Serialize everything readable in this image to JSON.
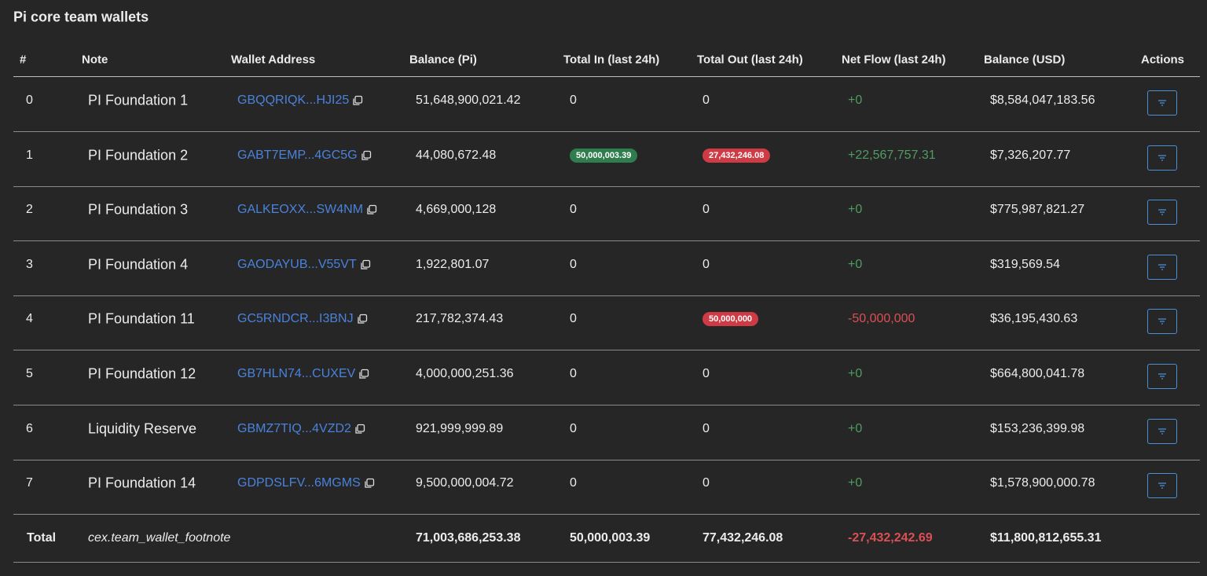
{
  "title": "Pi core team wallets",
  "table": {
    "headers": [
      "#",
      "Note",
      "Wallet Address",
      "Balance (Pi)",
      "Total In (last 24h)",
      "Total Out (last 24h)",
      "Net Flow (last 24h)",
      "Balance (USD)",
      "Actions"
    ],
    "rows": [
      {
        "index": "0",
        "note": "PI Foundation 1",
        "address": "GBQQRIQK...HJI25",
        "balance": "51,648,900,021.42",
        "total_in": "0",
        "total_out": "0",
        "net_flow": "+0",
        "balance_usd": "$8,584,047,183.56"
      },
      {
        "index": "1",
        "note": "PI Foundation 2",
        "address": "GABT7EMP...4GC5G",
        "balance": "44,080,672.48",
        "total_in": "50,000,003.39",
        "total_out": "27,432,246.08",
        "net_flow": "+22,567,757.31",
        "balance_usd": "$7,326,207.77"
      },
      {
        "index": "2",
        "note": "PI Foundation 3",
        "address": "GALKEOXX...SW4NM",
        "balance": "4,669,000,128",
        "total_in": "0",
        "total_out": "0",
        "net_flow": "+0",
        "balance_usd": "$775,987,821.27"
      },
      {
        "index": "3",
        "note": "PI Foundation 4",
        "address": "GAODAYUB...V55VT",
        "balance": "1,922,801.07",
        "total_in": "0",
        "total_out": "0",
        "net_flow": "+0",
        "balance_usd": "$319,569.54"
      },
      {
        "index": "4",
        "note": "PI Foundation 11",
        "address": "GC5RNDCR...I3BNJ",
        "balance": "217,782,374.43",
        "total_in": "0",
        "total_out": "50,000,000",
        "net_flow": "-50,000,000",
        "balance_usd": "$36,195,430.63"
      },
      {
        "index": "5",
        "note": "PI Foundation 12",
        "address": "GB7HLN74...CUXEV",
        "balance": "4,000,000,251.36",
        "total_in": "0",
        "total_out": "0",
        "net_flow": "+0",
        "balance_usd": "$664,800,041.78"
      },
      {
        "index": "6",
        "note": "Liquidity Reserve",
        "address": "GBMZ7TIQ...4VZD2",
        "balance": "921,999,999.89",
        "total_in": "0",
        "total_out": "0",
        "net_flow": "+0",
        "balance_usd": "$153,236,399.98"
      },
      {
        "index": "7",
        "note": "PI Foundation 14",
        "address": "GDPDSLFV...6MGMS",
        "balance": "9,500,000,004.72",
        "total_in": "0",
        "total_out": "0",
        "net_flow": "+0",
        "balance_usd": "$1,578,900,000.78"
      }
    ],
    "total": {
      "label": "Total",
      "note": "cex.team_wallet_footnote",
      "balance": "71,003,686,253.38",
      "total_in": "50,000,003.39",
      "total_out": "77,432,246.08",
      "net_flow": "-27,432,242.69",
      "balance_usd": "$11,800,812,655.31"
    }
  }
}
